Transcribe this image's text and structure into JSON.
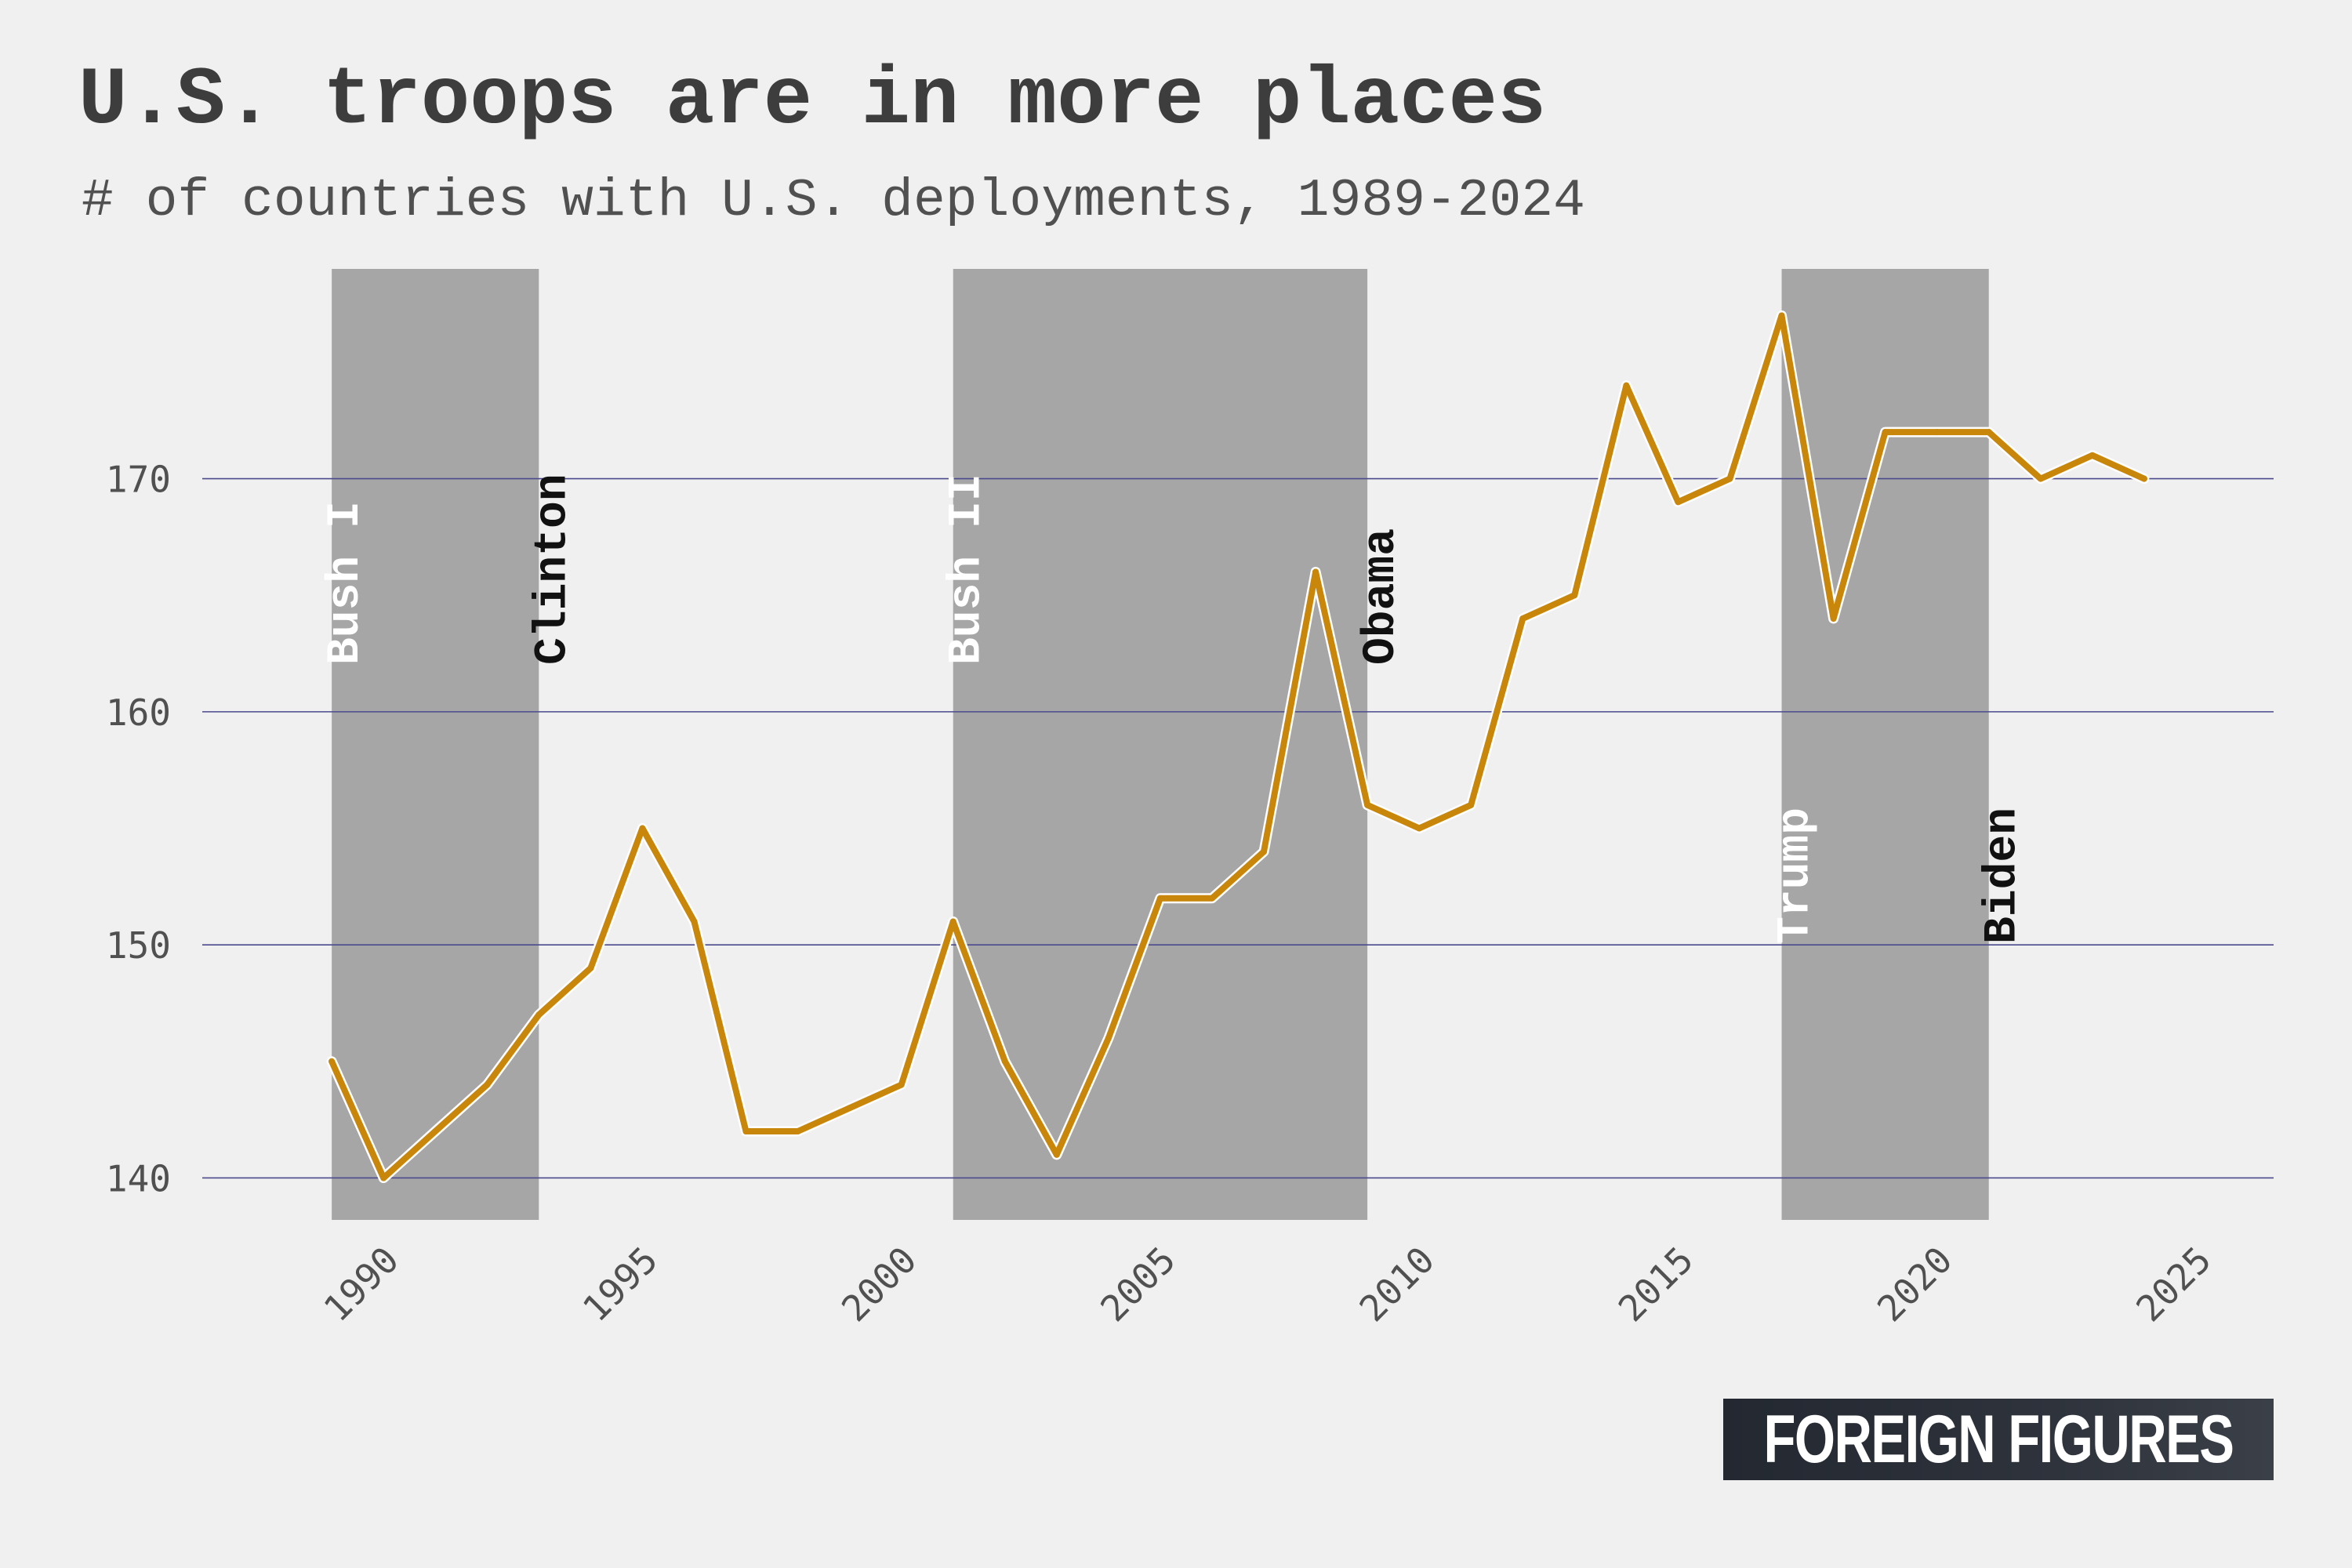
{
  "chart_data": {
    "type": "line",
    "title": "U.S. troops are in more places",
    "subtitle": "# of countries with U.S. deployments, 1989-2024",
    "xlabel": "",
    "ylabel": "",
    "x": [
      1989,
      1990,
      1991,
      1992,
      1993,
      1994,
      1995,
      1996,
      1997,
      1998,
      1999,
      2000,
      2001,
      2002,
      2003,
      2004,
      2005,
      2006,
      2007,
      2008,
      2009,
      2010,
      2011,
      2012,
      2013,
      2014,
      2015,
      2016,
      2017,
      2018,
      2019,
      2020,
      2021,
      2022,
      2023,
      2024
    ],
    "series": [
      {
        "values": [
          145,
          140,
          142,
          144,
          147,
          149,
          155,
          151,
          142,
          142,
          143,
          144,
          151,
          145,
          141,
          146,
          152,
          152,
          154,
          166,
          156,
          155,
          156,
          164,
          165,
          174,
          169,
          170,
          177,
          164,
          172,
          172,
          172,
          170,
          171,
          170
        ],
        "color": "#c8860b"
      }
    ],
    "xlim": [
      1986.5,
      2026.5
    ],
    "ylim": [
      138.2,
      179.0
    ],
    "xticks": [
      1990,
      1995,
      2000,
      2005,
      2010,
      2015,
      2020,
      2025
    ],
    "yticks": [
      140,
      150,
      160,
      170
    ],
    "grid": "horizontal",
    "legend": "none",
    "presidencies": [
      {
        "label": "Bush I",
        "start": 1989,
        "end": 1993,
        "shaded": true
      },
      {
        "label": "Clinton",
        "start": 1993,
        "end": 2001,
        "shaded": false
      },
      {
        "label": "Bush II",
        "start": 2001,
        "end": 2009,
        "shaded": true
      },
      {
        "label": "Obama",
        "start": 2009,
        "end": 2017,
        "shaded": false
      },
      {
        "label": "Trump",
        "start": 2017,
        "end": 2021,
        "shaded": true
      },
      {
        "label": "Biden",
        "start": 2021,
        "end": 2025,
        "shaded": false
      }
    ],
    "colors": {
      "background": "#f0f0f0",
      "shade": "#a6a6a6",
      "grid": "#4a4a8c",
      "line": "#c8860b",
      "line_outline": "#ffffff",
      "label_on_shade": "#ffffff",
      "label_plain": "#111111",
      "tick_text": "#505050"
    }
  },
  "branding": {
    "logo_text": "FOREIGN FIGURES"
  }
}
